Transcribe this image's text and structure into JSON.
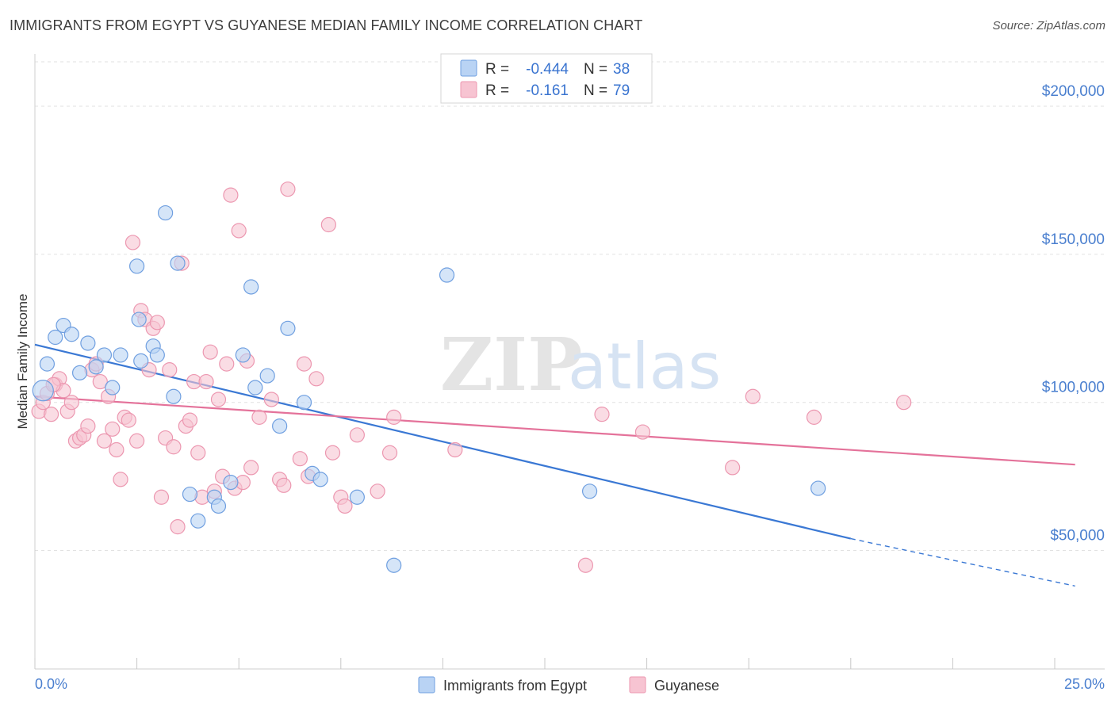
{
  "title": "IMMIGRANTS FROM EGYPT VS GUYANESE MEDIAN FAMILY INCOME CORRELATION CHART",
  "source": "Source: ZipAtlas.com",
  "watermark": {
    "zip": "ZIP",
    "atlas": "atlas"
  },
  "colors": {
    "blue_fill": "#b9d3f4",
    "blue_stroke": "#6f9fe0",
    "blue_line": "#3a78d4",
    "pink_fill": "#f7c4d2",
    "pink_stroke": "#ec97b0",
    "pink_line": "#e4729a",
    "tick_text": "#4a7fcf",
    "grid": "#e2e2e2"
  },
  "legend": {
    "rows": [
      {
        "r_label": "R =",
        "r_value": "-0.444",
        "n_label": "N =",
        "n_value": "38",
        "color": "blue"
      },
      {
        "r_label": "R =",
        "r_value": "-0.161",
        "n_label": "N =",
        "n_value": "79",
        "color": "pink"
      }
    ]
  },
  "chart_data": {
    "type": "scatter",
    "title": "IMMIGRANTS FROM EGYPT VS GUYANESE MEDIAN FAMILY INCOME CORRELATION CHART",
    "xlabel": "",
    "ylabel": "Median Family Income",
    "xlim": [
      0,
      25
    ],
    "ylim": [
      10000,
      215000
    ],
    "x_tick_labels": [
      "0.0%",
      "25.0%"
    ],
    "y_ticks": [
      50000,
      100000,
      150000,
      200000
    ],
    "y_tick_labels": [
      "$50,000",
      "$100,000",
      "$150,000",
      "$200,000"
    ],
    "grid": true,
    "legend_position": "top-center",
    "series": [
      {
        "name": "Immigrants from Egypt",
        "color": "blue",
        "r": -0.444,
        "n": 38,
        "trend": {
          "x_start": 0,
          "y_start": 119500,
          "x_end": 20,
          "y_end": 54000,
          "dashed_to_x": 25.5,
          "dashed_to_y": 38000
        },
        "points": [
          [
            0.2,
            104000
          ],
          [
            0.3,
            113000
          ],
          [
            0.5,
            122000
          ],
          [
            0.7,
            126000
          ],
          [
            0.9,
            123000
          ],
          [
            1.1,
            110000
          ],
          [
            1.3,
            120000
          ],
          [
            1.5,
            112000
          ],
          [
            1.7,
            116000
          ],
          [
            1.9,
            105000
          ],
          [
            2.1,
            116000
          ],
          [
            2.5,
            146000
          ],
          [
            2.55,
            128000
          ],
          [
            2.6,
            114000
          ],
          [
            2.9,
            119000
          ],
          [
            3.0,
            116000
          ],
          [
            3.2,
            164000
          ],
          [
            3.4,
            102000
          ],
          [
            3.5,
            147000
          ],
          [
            3.8,
            69000
          ],
          [
            4.0,
            60000
          ],
          [
            4.4,
            68000
          ],
          [
            4.5,
            65000
          ],
          [
            4.8,
            73000
          ],
          [
            5.1,
            116000
          ],
          [
            5.3,
            139000
          ],
          [
            5.4,
            105000
          ],
          [
            5.7,
            109000
          ],
          [
            6.0,
            92000
          ],
          [
            6.2,
            125000
          ],
          [
            6.6,
            100000
          ],
          [
            6.8,
            76000
          ],
          [
            7.0,
            74000
          ],
          [
            7.9,
            68000
          ],
          [
            8.8,
            45000
          ],
          [
            10.1,
            143000
          ],
          [
            13.6,
            70000
          ],
          [
            19.2,
            71000
          ]
        ]
      },
      {
        "name": "Guyanese",
        "color": "pink",
        "r": -0.161,
        "n": 79,
        "trend": {
          "x_start": 0,
          "y_start": 102000,
          "x_end": 25.5,
          "y_end": 79000
        },
        "points": [
          [
            0.1,
            97000
          ],
          [
            0.2,
            100000
          ],
          [
            0.3,
            103000
          ],
          [
            0.4,
            96000
          ],
          [
            0.5,
            106000
          ],
          [
            0.6,
            108000
          ],
          [
            0.7,
            104000
          ],
          [
            0.8,
            97000
          ],
          [
            0.9,
            100000
          ],
          [
            1.0,
            87000
          ],
          [
            1.1,
            88000
          ],
          [
            1.2,
            89000
          ],
          [
            1.3,
            92000
          ],
          [
            1.4,
            111000
          ],
          [
            1.5,
            113000
          ],
          [
            1.6,
            107000
          ],
          [
            1.7,
            87000
          ],
          [
            1.8,
            102000
          ],
          [
            1.9,
            91000
          ],
          [
            2.0,
            84000
          ],
          [
            2.1,
            74000
          ],
          [
            2.2,
            95000
          ],
          [
            2.3,
            94000
          ],
          [
            2.4,
            154000
          ],
          [
            2.5,
            87000
          ],
          [
            2.6,
            131000
          ],
          [
            2.7,
            128000
          ],
          [
            2.8,
            111000
          ],
          [
            2.9,
            125000
          ],
          [
            3.0,
            127000
          ],
          [
            3.1,
            68000
          ],
          [
            3.2,
            88000
          ],
          [
            3.3,
            111000
          ],
          [
            3.4,
            85000
          ],
          [
            3.5,
            58000
          ],
          [
            3.6,
            147000
          ],
          [
            3.7,
            92000
          ],
          [
            3.8,
            94000
          ],
          [
            3.9,
            107000
          ],
          [
            4.0,
            83000
          ],
          [
            4.1,
            68000
          ],
          [
            4.2,
            107000
          ],
          [
            4.3,
            117000
          ],
          [
            4.4,
            70000
          ],
          [
            4.5,
            101000
          ],
          [
            4.6,
            75000
          ],
          [
            4.7,
            113000
          ],
          [
            4.8,
            170000
          ],
          [
            4.9,
            71000
          ],
          [
            5.0,
            158000
          ],
          [
            5.1,
            73000
          ],
          [
            5.2,
            114000
          ],
          [
            5.3,
            78000
          ],
          [
            5.5,
            95000
          ],
          [
            5.8,
            101000
          ],
          [
            6.0,
            74000
          ],
          [
            6.1,
            72000
          ],
          [
            6.2,
            172000
          ],
          [
            6.5,
            81000
          ],
          [
            6.6,
            113000
          ],
          [
            6.7,
            75000
          ],
          [
            6.9,
            108000
          ],
          [
            7.2,
            160000
          ],
          [
            7.3,
            83000
          ],
          [
            7.5,
            68000
          ],
          [
            7.6,
            65000
          ],
          [
            7.9,
            89000
          ],
          [
            8.4,
            70000
          ],
          [
            8.7,
            83000
          ],
          [
            8.8,
            95000
          ],
          [
            10.3,
            84000
          ],
          [
            13.5,
            45000
          ],
          [
            13.9,
            96000
          ],
          [
            14.9,
            90000
          ],
          [
            17.1,
            78000
          ],
          [
            17.6,
            102000
          ],
          [
            19.1,
            95000
          ],
          [
            21.3,
            100000
          ],
          [
            0.45,
            106000
          ]
        ]
      }
    ]
  },
  "bottom_legend": [
    {
      "label": "Immigrants from Egypt",
      "color": "blue"
    },
    {
      "label": "Guyanese",
      "color": "pink"
    }
  ]
}
